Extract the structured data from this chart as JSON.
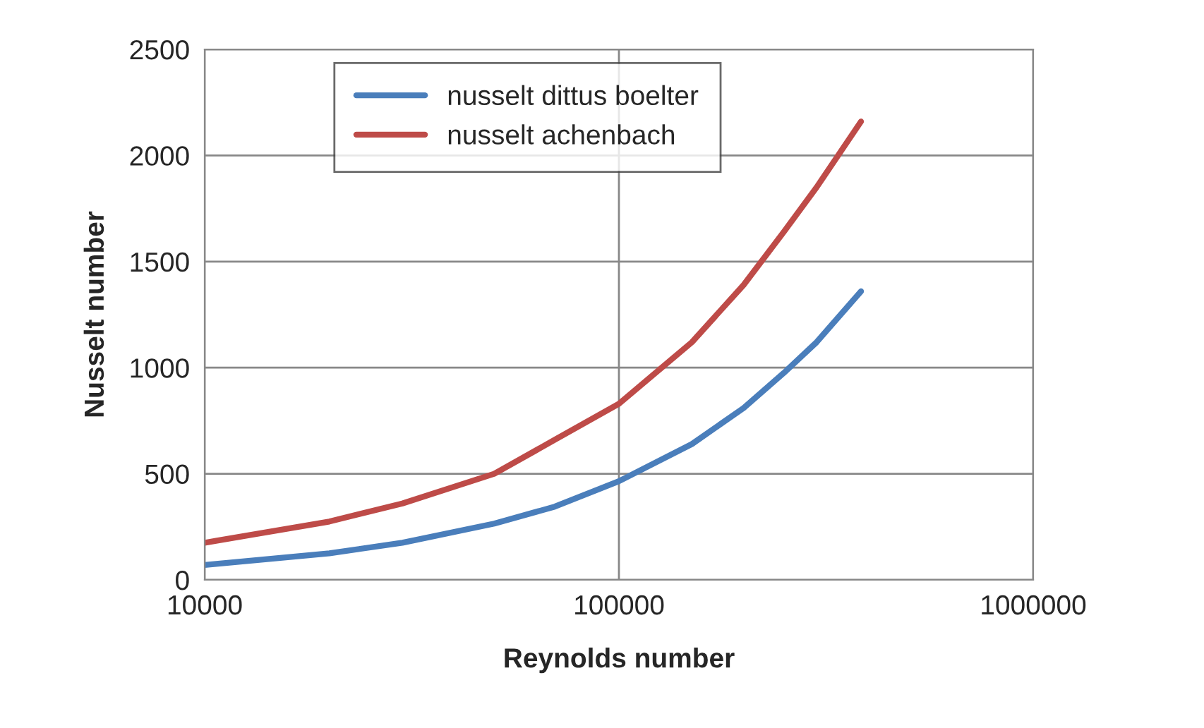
{
  "chart_data": {
    "type": "line",
    "xlabel": "Reynolds number",
    "ylabel": "Nusselt number",
    "log": "x",
    "xlim": [
      10000,
      1000000
    ],
    "xticks": [
      10000,
      100000,
      1000000
    ],
    "ylim": [
      0,
      2500
    ],
    "yticks": [
      0,
      500,
      1000,
      1500,
      2000,
      2500
    ],
    "grid": true,
    "legend": "top left",
    "series": [
      {
        "name": "nusselt dittus boelter",
        "color": "#4a7ebb",
        "x": [
          10000,
          20000,
          30000,
          50000,
          70000,
          100000,
          150000,
          200000,
          250000,
          300000,
          384000
        ],
        "values": [
          70,
          125,
          175,
          265,
          345,
          465,
          640,
          810,
          975,
          1120,
          1360
        ]
      },
      {
        "name": "nusselt achenbach",
        "color": "#be4b48",
        "x": [
          10000,
          20000,
          30000,
          50000,
          70000,
          100000,
          150000,
          200000,
          250000,
          300000,
          384000
        ],
        "values": [
          175,
          275,
          360,
          500,
          660,
          830,
          1120,
          1390,
          1640,
          1850,
          2160
        ]
      }
    ]
  }
}
